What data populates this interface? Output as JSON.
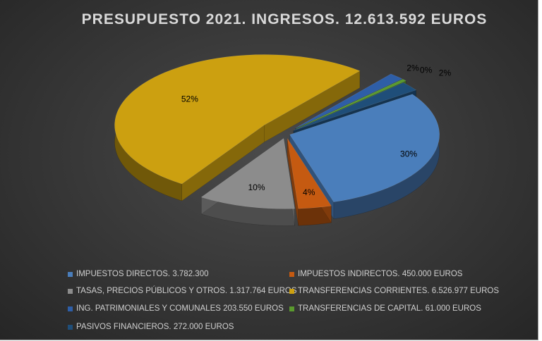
{
  "chart_data": {
    "type": "pie",
    "title": "PRESUPUESTO 2021. INGRESOS. 12.613.592 EUROS",
    "legend_position": "bottom",
    "slices": [
      {
        "label": "IMPUESTOS DIRECTOS. 3.782.300",
        "value": 3782300,
        "percent_label": "30%",
        "color": "#4a7ebb"
      },
      {
        "label": "IMPUESTOS INDIRECTOS. 450.000 EUROS",
        "value": 450000,
        "percent_label": "4%",
        "color": "#c55a11"
      },
      {
        "label": "TASAS, PRECIOS PÚBLICOS Y OTROS. 1.317.764 EUROS",
        "value": 1317764,
        "percent_label": "10%",
        "color": "#8c8c8c"
      },
      {
        "label": "TRANSFERENCIAS CORRIENTES. 6.526.977 EUROS",
        "value": 6526977,
        "percent_label": "52%",
        "color": "#cca010"
      },
      {
        "label": "ING. PATRIMONIALES Y COMUNALES 203.550 EUROS",
        "value": 203550,
        "percent_label": "2%",
        "color": "#2e5ea7"
      },
      {
        "label": "TRANSFERENCIAS DE CAPITAL. 61.000 EUROS",
        "value": 61000,
        "percent_label": "0%",
        "color": "#5a9a2e"
      },
      {
        "label": "PASIVOS FINANCIEROS. 272.000 EUROS",
        "value": 272000,
        "percent_label": "2%",
        "color": "#1f4e79"
      }
    ]
  }
}
